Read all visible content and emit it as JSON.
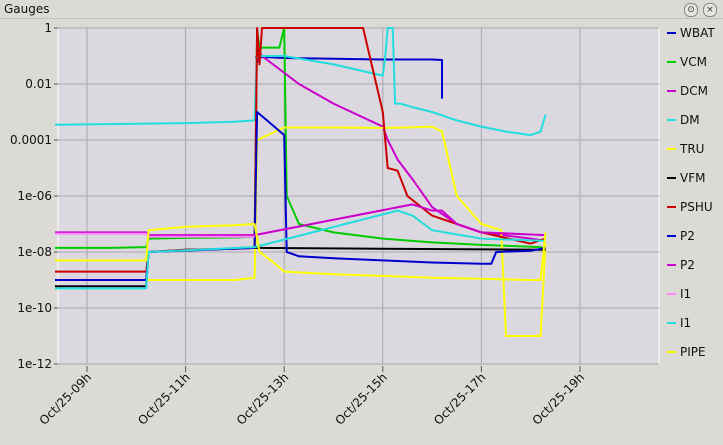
{
  "window": {
    "title": "Gauges",
    "colors": {
      "background": "#dcdad5",
      "plot": "#dcd8e0",
      "grid": "#a8a6ad"
    }
  },
  "chart_data": {
    "type": "line",
    "yscale": "log",
    "ylim": [
      1e-12,
      1
    ],
    "yticks": [
      {
        "value": 1,
        "label": "1"
      },
      {
        "value": 0.01,
        "label": "0.01"
      },
      {
        "value": 0.0001,
        "label": "0.0001"
      },
      {
        "value": 1e-06,
        "label": "1e-06"
      },
      {
        "value": 1e-08,
        "label": "1e-08"
      },
      {
        "value": 1e-10,
        "label": "1e-10"
      },
      {
        "value": 1e-12,
        "label": "1e-12"
      }
    ],
    "xlim": [
      8.3,
      21.3
    ],
    "xticks": [
      {
        "value": 9,
        "label": "Oct/25-09h"
      },
      {
        "value": 11,
        "label": "Oct/25-11h"
      },
      {
        "value": 13,
        "label": "Oct/25-13h"
      },
      {
        "value": 15,
        "label": "Oct/25-15h"
      },
      {
        "value": 17,
        "label": "Oct/25-17h"
      },
      {
        "value": 19,
        "label": "Oct/25-19h"
      }
    ],
    "grid": true,
    "legend_position": "right",
    "series": [
      {
        "name": "WBAT",
        "color": "#0000cc",
        "points": [
          [
            12.43,
            0.1
          ],
          [
            12.45,
            0.06
          ],
          [
            12.5,
            0.09
          ],
          [
            12.7,
            0.09
          ],
          [
            13.0,
            0.085
          ],
          [
            14.0,
            0.08
          ],
          [
            15.0,
            0.075
          ],
          [
            16.0,
            0.075
          ],
          [
            16.2,
            0.072
          ],
          [
            16.2,
            0.003
          ]
        ]
      },
      {
        "name": "VCM",
        "color": "#00cc00",
        "points": [
          [
            8.35,
            1.4e-08
          ],
          [
            9.0,
            1.4e-08
          ],
          [
            9.5,
            1.4e-08
          ],
          [
            10.2,
            1.5e-08
          ],
          [
            10.25,
            3e-08
          ],
          [
            11.0,
            3.2e-08
          ],
          [
            12.0,
            3.3e-08
          ],
          [
            12.4,
            3.5e-08
          ],
          [
            12.45,
            0.9
          ],
          [
            12.5,
            0.2
          ],
          [
            12.9,
            0.2
          ],
          [
            13.0,
            1.0
          ],
          [
            13.05,
            1e-06
          ],
          [
            13.3,
            1e-07
          ],
          [
            14.0,
            5e-08
          ],
          [
            15.0,
            3e-08
          ],
          [
            16.0,
            2.2e-08
          ],
          [
            17.0,
            1.8e-08
          ],
          [
            18.2,
            1.5e-08
          ],
          [
            18.3,
            1.2e-08
          ]
        ]
      },
      {
        "name": "DCM",
        "color": "#cc00cc",
        "points": [
          [
            12.45,
            0.2
          ],
          [
            12.55,
            0.1
          ],
          [
            13.3,
            0.01
          ],
          [
            14.0,
            0.002
          ],
          [
            15.0,
            0.0003
          ],
          [
            15.1,
            0.0001
          ],
          [
            15.3,
            2e-05
          ],
          [
            15.6,
            4e-06
          ],
          [
            16.0,
            4e-07
          ],
          [
            16.5,
            1e-07
          ],
          [
            17.0,
            5e-08
          ],
          [
            18.0,
            3e-08
          ],
          [
            18.3,
            2.5e-08
          ]
        ]
      },
      {
        "name": "DM",
        "color": "#22dddd",
        "points": [
          [
            8.35,
            0.00035
          ],
          [
            9.0,
            0.00036
          ],
          [
            10.0,
            0.00038
          ],
          [
            11.0,
            0.0004
          ],
          [
            12.0,
            0.00045
          ],
          [
            12.4,
            0.0005
          ],
          [
            12.45,
            0.2
          ],
          [
            12.5,
            0.1
          ],
          [
            13.0,
            0.1
          ],
          [
            14.0,
            0.05
          ],
          [
            15.0,
            0.02
          ],
          [
            15.05,
            0.1
          ],
          [
            15.1,
            1.0
          ],
          [
            15.2,
            1.0
          ],
          [
            15.25,
            0.002
          ],
          [
            15.35,
            0.002
          ],
          [
            15.6,
            0.0015
          ],
          [
            16.0,
            0.001
          ],
          [
            16.5,
            0.0005
          ],
          [
            17.0,
            0.0003
          ],
          [
            17.5,
            0.0002
          ],
          [
            18.0,
            0.00015
          ],
          [
            18.2,
            0.0002
          ],
          [
            18.3,
            0.0008
          ]
        ]
      },
      {
        "name": "TRU",
        "color": "#ffff00",
        "points": [
          [
            8.35,
            1e-09
          ],
          [
            9.0,
            1e-09
          ],
          [
            10.0,
            1e-09
          ],
          [
            11.0,
            1e-09
          ],
          [
            12.0,
            1e-09
          ],
          [
            12.4,
            1.2e-09
          ],
          [
            12.45,
            0.0001
          ],
          [
            13.0,
            0.00028
          ],
          [
            14.0,
            0.00028
          ],
          [
            15.0,
            0.00027
          ],
          [
            15.5,
            0.00028
          ],
          [
            16.0,
            0.0003
          ],
          [
            16.2,
            0.0002
          ],
          [
            16.5,
            1e-06
          ],
          [
            17.0,
            1e-07
          ],
          [
            17.4,
            6e-08
          ],
          [
            17.5,
            1e-11
          ],
          [
            18.2,
            1e-11
          ],
          [
            18.3,
            2e-08
          ]
        ]
      },
      {
        "name": "VFM",
        "color": "#000000",
        "points": [
          [
            8.35,
            6e-10
          ],
          [
            9.0,
            6e-10
          ],
          [
            10.0,
            6e-10
          ],
          [
            10.2,
            6e-10
          ],
          [
            10.25,
            1e-08
          ],
          [
            11.0,
            1.2e-08
          ],
          [
            12.0,
            1.3e-08
          ],
          [
            12.4,
            1.4e-08
          ],
          [
            18.3,
            1.2e-08
          ]
        ]
      },
      {
        "name": "PSHU",
        "color": "#cc0000",
        "points": [
          [
            8.35,
            2e-09
          ],
          [
            9.0,
            2e-09
          ],
          [
            10.0,
            2e-09
          ],
          [
            10.2,
            2e-09
          ],
          [
            10.25,
            1e-08
          ],
          [
            11.0,
            1.2e-08
          ],
          [
            12.0,
            1.3e-08
          ],
          [
            12.4,
            1.4e-08
          ],
          [
            12.45,
            1.0
          ],
          [
            12.5,
            0.05
          ],
          [
            12.55,
            1.0
          ],
          [
            14.0,
            1.0
          ],
          [
            14.6,
            1.0
          ],
          [
            15.0,
            0.001
          ],
          [
            15.1,
            1e-05
          ],
          [
            15.3,
            8e-06
          ],
          [
            15.5,
            1e-06
          ],
          [
            16.0,
            2e-07
          ],
          [
            17.0,
            5e-08
          ],
          [
            18.0,
            2e-08
          ],
          [
            18.3,
            3e-08
          ]
        ]
      },
      {
        "name": "P2",
        "color": "#0000cc",
        "points": [
          [
            8.35,
            1e-09
          ],
          [
            10.0,
            1e-09
          ],
          [
            10.2,
            1e-09
          ],
          [
            10.25,
            1e-08
          ],
          [
            12.4,
            1.4e-08
          ],
          [
            12.45,
            0.001
          ],
          [
            12.8,
            0.0003
          ],
          [
            13.0,
            0.00015
          ],
          [
            13.05,
            1e-08
          ],
          [
            13.3,
            7e-09
          ],
          [
            14.0,
            6e-09
          ],
          [
            15.0,
            5e-09
          ],
          [
            16.0,
            4.2e-09
          ],
          [
            17.0,
            3.8e-09
          ],
          [
            17.2,
            3.8e-09
          ],
          [
            17.3,
            1e-08
          ],
          [
            18.0,
            1.1e-08
          ],
          [
            18.3,
            1.4e-08
          ]
        ]
      },
      {
        "name": "P2",
        "color": "#cc00cc",
        "points": [
          [
            8.35,
            5e-08
          ],
          [
            9.0,
            5e-08
          ],
          [
            10.0,
            5e-08
          ],
          [
            10.2,
            5e-08
          ],
          [
            10.25,
            4e-08
          ],
          [
            12.4,
            4e-08
          ],
          [
            15.6,
            5e-07
          ],
          [
            16.0,
            3e-07
          ],
          [
            16.2,
            3e-07
          ],
          [
            16.5,
            1e-07
          ],
          [
            17.0,
            5e-08
          ],
          [
            18.3,
            4e-08
          ]
        ]
      },
      {
        "name": "I1",
        "color": "#ff88ff",
        "points": [
          [
            8.35,
            4.5e-08
          ],
          [
            10.2,
            4.5e-08
          ],
          [
            10.25,
            3.5e-08
          ],
          [
            12.4,
            3.5e-08
          ]
        ]
      },
      {
        "name": "I1",
        "color": "#22dddd",
        "points": [
          [
            8.35,
            5e-10
          ],
          [
            10.2,
            5e-10
          ],
          [
            10.25,
            1e-08
          ],
          [
            12.4,
            1.5e-08
          ],
          [
            15.3,
            3e-07
          ],
          [
            15.6,
            2e-07
          ],
          [
            16.0,
            6e-08
          ],
          [
            17.0,
            3e-08
          ],
          [
            18.3,
            2.5e-08
          ]
        ]
      },
      {
        "name": "PIPE",
        "color": "#ffff00",
        "points": [
          [
            8.35,
            5e-09
          ],
          [
            10.2,
            5e-09
          ],
          [
            10.25,
            6e-08
          ],
          [
            11.0,
            8e-08
          ],
          [
            12.0,
            9e-08
          ],
          [
            12.4,
            1e-07
          ],
          [
            12.5,
            1e-08
          ],
          [
            12.8,
            4e-09
          ],
          [
            13.0,
            2e-09
          ],
          [
            14.0,
            1.6e-09
          ],
          [
            15.0,
            1.4e-09
          ],
          [
            16.0,
            1.2e-09
          ],
          [
            17.0,
            1.1e-09
          ],
          [
            18.0,
            1e-09
          ],
          [
            18.2,
            1e-09
          ],
          [
            18.3,
            5e-08
          ]
        ]
      }
    ]
  }
}
